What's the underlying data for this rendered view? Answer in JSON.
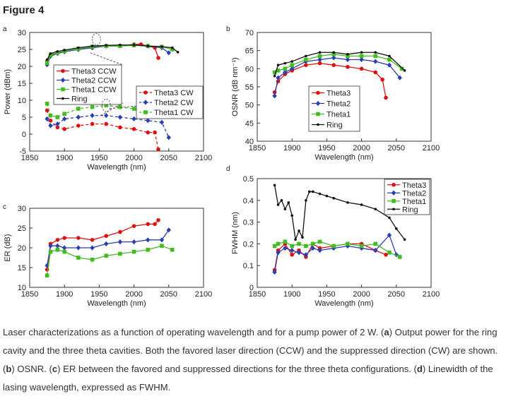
{
  "figure_title": "Figure 4",
  "caption": {
    "s1": "Laser characterizations as a function of operating wavelength and for a pump power of 2 W. (",
    "a": "a",
    "s2": ") Output power for the ring cavity and the three theta cavities. Both the favored laser direction (CCW) and the suppressed direction (CW) are shown. (",
    "b": "b",
    "s3": ") OSNR. (",
    "c": "c",
    "s4": ") ER between the favored and suppressed directions for the three theta configurations. (",
    "d": "d",
    "s5": ") Linewidth of the lasing wavelength, expressed as FWHM."
  },
  "colors": {
    "theta3": "#dd1111",
    "theta2": "#2a3fb0",
    "theta1": "#44bb22",
    "ring": "#111111"
  },
  "chart_data": [
    {
      "panel": "a",
      "type": "line",
      "xlabel": "Wavelength (nm)",
      "ylabel": "Power (dBm)",
      "xlim": [
        1850,
        2100
      ],
      "ylim": [
        -5,
        30
      ],
      "xticks": [
        1850,
        1900,
        1950,
        2000,
        2050,
        2100
      ],
      "yticks": [
        -5,
        0,
        5,
        10,
        15,
        20,
        25,
        30
      ],
      "legends": [
        {
          "position": "upper-left",
          "entries": [
            "Theta3 CCW",
            "Theta2 CCW",
            "Theta1 CCW",
            "Ring"
          ]
        },
        {
          "position": "middle-right",
          "entries": [
            "Theta3 CW",
            "Theta2 CW",
            "Theta1 CW"
          ]
        }
      ],
      "series": [
        {
          "name": "Theta3 CCW",
          "color": "theta3",
          "style": "solid",
          "marker": "circle",
          "x": [
            1875,
            1880,
            1890,
            1900,
            1920,
            1940,
            1960,
            1980,
            2000,
            2010,
            2020,
            2030,
            2035
          ],
          "y": [
            21.5,
            23.5,
            24.0,
            24.5,
            25.0,
            25.5,
            26.0,
            26.0,
            26.5,
            26.5,
            26.0,
            25.5,
            22.5
          ]
        },
        {
          "name": "Theta2 CCW",
          "color": "theta2",
          "style": "solid",
          "marker": "diamond",
          "x": [
            1875,
            1880,
            1890,
            1900,
            1920,
            1940,
            1960,
            1980,
            2000,
            2020,
            2040,
            2050
          ],
          "y": [
            20.5,
            23.0,
            23.8,
            24.3,
            25.0,
            25.5,
            26.0,
            26.0,
            26.3,
            26.0,
            25.5,
            24.0
          ]
        },
        {
          "name": "Theta1 CCW",
          "color": "theta1",
          "style": "solid",
          "marker": "square",
          "x": [
            1875,
            1880,
            1890,
            1900,
            1920,
            1940,
            1960,
            1980,
            2000,
            2020,
            2040,
            2055
          ],
          "y": [
            21.0,
            23.3,
            24.0,
            24.5,
            25.2,
            25.8,
            26.0,
            26.0,
            26.2,
            26.0,
            25.8,
            25.0
          ]
        },
        {
          "name": "Ring",
          "color": "ring",
          "style": "solid",
          "marker": "dot",
          "x": [
            1875,
            1880,
            1890,
            1900,
            1920,
            1940,
            1960,
            1980,
            2000,
            2020,
            2040,
            2055,
            2063
          ],
          "y": [
            22.0,
            23.8,
            24.4,
            24.8,
            25.5,
            26.0,
            26.2,
            26.3,
            26.3,
            26.0,
            25.8,
            25.5,
            24.2
          ]
        },
        {
          "name": "Theta3 CW",
          "color": "theta3",
          "style": "dashed",
          "marker": "circle",
          "x": [
            1875,
            1880,
            1890,
            1900,
            1920,
            1940,
            1960,
            1980,
            2000,
            2020,
            2030,
            2035
          ],
          "y": [
            7.0,
            4.0,
            2.0,
            1.5,
            2.5,
            3.0,
            3.0,
            2.0,
            1.5,
            0.5,
            0.5,
            -4.5
          ]
        },
        {
          "name": "Theta2 CW",
          "color": "theta2",
          "style": "dashed",
          "marker": "diamond",
          "x": [
            1875,
            1880,
            1890,
            1900,
            1920,
            1940,
            1960,
            1980,
            2000,
            2020,
            2040,
            2050
          ],
          "y": [
            4.5,
            2.5,
            3.0,
            4.5,
            5.0,
            5.5,
            5.5,
            5.0,
            4.5,
            4.0,
            3.5,
            -1.0
          ]
        },
        {
          "name": "Theta1 CW",
          "color": "theta1",
          "style": "dashed",
          "marker": "square",
          "x": [
            1875,
            1880,
            1890,
            1900,
            1920,
            1940,
            1960,
            1980,
            2000,
            2020,
            2040,
            2055
          ],
          "y": [
            9.0,
            5.5,
            5.0,
            6.0,
            7.5,
            8.0,
            8.5,
            8.0,
            7.5,
            7.0,
            6.5,
            6.0
          ]
        }
      ]
    },
    {
      "panel": "b",
      "type": "line",
      "xlabel": "Wavelength (nm)",
      "ylabel": "OSNR (dB nm⁻¹)",
      "xlim": [
        1850,
        2100
      ],
      "ylim": [
        40,
        70
      ],
      "xticks": [
        1850,
        1900,
        1950,
        2000,
        2050,
        2100
      ],
      "yticks": [
        40,
        45,
        50,
        55,
        60,
        65,
        70
      ],
      "legend": {
        "position": "lower-right",
        "entries": [
          "Theta3",
          "Theta2",
          "Theta1",
          "Ring"
        ]
      },
      "series": [
        {
          "name": "Theta3",
          "color": "theta3",
          "marker": "circle",
          "x": [
            1875,
            1880,
            1890,
            1900,
            1920,
            1940,
            1960,
            1980,
            2000,
            2020,
            2030,
            2035
          ],
          "y": [
            53.5,
            56.5,
            58.5,
            59.5,
            61.0,
            61.5,
            61.0,
            60.5,
            60.0,
            59.0,
            57.0,
            52.0
          ]
        },
        {
          "name": "Theta2",
          "color": "theta2",
          "marker": "diamond",
          "x": [
            1875,
            1880,
            1890,
            1900,
            1920,
            1940,
            1960,
            1980,
            2000,
            2020,
            2040,
            2055
          ],
          "y": [
            52.5,
            57.5,
            59.0,
            60.0,
            62.0,
            62.5,
            63.0,
            62.5,
            62.5,
            62.0,
            61.0,
            57.5
          ]
        },
        {
          "name": "Theta1",
          "color": "theta1",
          "marker": "square",
          "x": [
            1875,
            1880,
            1890,
            1900,
            1920,
            1940,
            1960,
            1980,
            2000,
            2020,
            2040,
            2058
          ],
          "y": [
            59.0,
            59.5,
            60.0,
            61.0,
            62.5,
            63.5,
            64.0,
            63.5,
            63.5,
            63.5,
            62.5,
            60.0
          ]
        },
        {
          "name": "Ring",
          "color": "ring",
          "marker": "dot",
          "x": [
            1875,
            1880,
            1890,
            1900,
            1920,
            1940,
            1960,
            1980,
            2000,
            2020,
            2040,
            2062
          ],
          "y": [
            58.0,
            61.0,
            61.5,
            62.0,
            63.5,
            64.5,
            64.5,
            64.0,
            64.5,
            64.5,
            63.5,
            59.5
          ]
        }
      ]
    },
    {
      "panel": "c",
      "type": "line",
      "xlabel": "Wavelength (nm)",
      "ylabel": "ER (dB)",
      "xlim": [
        1850,
        2100
      ],
      "ylim": [
        10,
        30
      ],
      "xticks": [
        1850,
        1900,
        1950,
        2000,
        2050,
        2100
      ],
      "yticks": [
        10,
        15,
        20,
        25,
        30
      ],
      "series": [
        {
          "name": "Theta3",
          "color": "theta3",
          "marker": "circle",
          "x": [
            1875,
            1880,
            1890,
            1900,
            1920,
            1940,
            1960,
            1980,
            2000,
            2020,
            2030,
            2035
          ],
          "y": [
            14.5,
            21.0,
            22.0,
            22.5,
            22.5,
            22.0,
            23.0,
            24.0,
            25.5,
            26.0,
            26.0,
            27.0
          ]
        },
        {
          "name": "Theta2",
          "color": "theta2",
          "marker": "diamond",
          "x": [
            1875,
            1880,
            1890,
            1900,
            1920,
            1940,
            1960,
            1980,
            2000,
            2020,
            2040,
            2050
          ],
          "y": [
            15.5,
            20.5,
            20.5,
            20.0,
            20.0,
            20.0,
            21.0,
            21.5,
            21.5,
            22.0,
            22.0,
            24.5
          ]
        },
        {
          "name": "Theta1",
          "color": "theta1",
          "marker": "square",
          "x": [
            1875,
            1880,
            1890,
            1900,
            1920,
            1940,
            1960,
            1980,
            2000,
            2020,
            2040,
            2055
          ],
          "y": [
            13.0,
            19.0,
            19.5,
            19.0,
            17.5,
            17.0,
            18.0,
            18.5,
            19.0,
            19.5,
            20.5,
            19.5
          ]
        }
      ]
    },
    {
      "panel": "d",
      "type": "line",
      "xlabel": "Wavelength (nm)",
      "ylabel": "FWHM (nm)",
      "xlim": [
        1850,
        2100
      ],
      "ylim": [
        0,
        0.5
      ],
      "xticks": [
        1850,
        1900,
        1950,
        2000,
        2050,
        2100
      ],
      "yticks": [
        0,
        0.1,
        0.2,
        0.3,
        0.4,
        0.5
      ],
      "legend": {
        "position": "upper-right",
        "entries": [
          "Theta3",
          "Theta2",
          "Theta1",
          "Ring"
        ]
      },
      "series": [
        {
          "name": "Theta3",
          "color": "theta3",
          "marker": "circle",
          "x": [
            1875,
            1880,
            1890,
            1900,
            1910,
            1920,
            1930,
            1940,
            1960,
            1980,
            2000,
            2020,
            2035
          ],
          "y": [
            0.08,
            0.17,
            0.2,
            0.15,
            0.17,
            0.14,
            0.2,
            0.18,
            0.19,
            0.2,
            0.2,
            0.17,
            0.15
          ]
        },
        {
          "name": "Theta2",
          "color": "theta2",
          "marker": "diamond",
          "x": [
            1875,
            1880,
            1890,
            1900,
            1910,
            1920,
            1930,
            1940,
            1960,
            1980,
            2000,
            2020,
            2040,
            2050
          ],
          "y": [
            0.07,
            0.16,
            0.18,
            0.17,
            0.16,
            0.15,
            0.18,
            0.17,
            0.18,
            0.19,
            0.18,
            0.17,
            0.24,
            0.15
          ]
        },
        {
          "name": "Theta1",
          "color": "theta1",
          "marker": "square",
          "x": [
            1875,
            1880,
            1890,
            1900,
            1910,
            1920,
            1930,
            1940,
            1960,
            1980,
            2000,
            2020,
            2040,
            2055
          ],
          "y": [
            0.19,
            0.2,
            0.21,
            0.19,
            0.2,
            0.19,
            0.2,
            0.21,
            0.19,
            0.2,
            0.19,
            0.2,
            0.16,
            0.14
          ]
        },
        {
          "name": "Ring",
          "color": "ring",
          "marker": "dot",
          "x": [
            1875,
            1880,
            1885,
            1890,
            1895,
            1900,
            1905,
            1910,
            1915,
            1920,
            1925,
            1930,
            1940,
            1950,
            1960,
            1980,
            2000,
            2020,
            2040,
            2050,
            2062
          ],
          "y": [
            0.47,
            0.38,
            0.4,
            0.36,
            0.39,
            0.33,
            0.22,
            0.26,
            0.23,
            0.4,
            0.44,
            0.44,
            0.43,
            0.42,
            0.41,
            0.39,
            0.38,
            0.36,
            0.32,
            0.27,
            0.22
          ]
        }
      ]
    }
  ]
}
